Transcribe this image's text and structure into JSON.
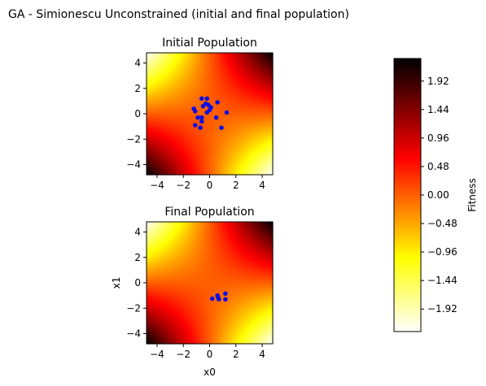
{
  "figure": {
    "title": "GA - Simionescu Unconstrained (initial and final population)"
  },
  "chart_data": [
    {
      "type": "scatter",
      "subtype": "contour-heatmap-with-scatter",
      "title": "Initial Population",
      "xlim": [
        -4.8,
        4.8
      ],
      "ylim": [
        -4.8,
        4.8
      ],
      "xticks": [
        -4,
        -2,
        0,
        2,
        4
      ],
      "yticks": [
        -4,
        -2,
        0,
        2,
        4
      ],
      "xlabel": "",
      "ylabel": "",
      "point_color": "#0f0fe0",
      "points": [
        [
          -0.6,
          1.2
        ],
        [
          -0.2,
          1.2
        ],
        [
          -0.3,
          0.8
        ],
        [
          -0.5,
          0.6
        ],
        [
          -0.1,
          0.7
        ],
        [
          0.1,
          0.5
        ],
        [
          0.0,
          0.3
        ],
        [
          -0.2,
          0.1
        ],
        [
          -1.2,
          0.4
        ],
        [
          -1.1,
          0.2
        ],
        [
          -0.9,
          -0.3
        ],
        [
          -0.6,
          -0.3
        ],
        [
          -0.6,
          -0.6
        ],
        [
          -1.1,
          -0.9
        ],
        [
          -0.7,
          -1.1
        ],
        [
          0.5,
          -0.3
        ],
        [
          1.3,
          0.1
        ],
        [
          0.9,
          -1.1
        ],
        [
          0.6,
          0.9
        ]
      ]
    },
    {
      "type": "scatter",
      "subtype": "contour-heatmap-with-scatter",
      "title": "Final Population",
      "xlim": [
        -4.8,
        4.8
      ],
      "ylim": [
        -4.8,
        4.8
      ],
      "xticks": [
        -4,
        -2,
        0,
        2,
        4
      ],
      "yticks": [
        -4,
        -2,
        0,
        2,
        4
      ],
      "xlabel": "x0",
      "ylabel": "x1",
      "point_color": "#0f0fe0",
      "points": [
        [
          0.2,
          -1.25
        ],
        [
          0.6,
          -1.0
        ],
        [
          0.7,
          -1.3
        ],
        [
          1.2,
          -0.85
        ],
        [
          1.2,
          -1.3
        ],
        [
          0.65,
          -1.15
        ]
      ]
    }
  ],
  "colorbar": {
    "label": "Fitness",
    "range": [
      -2.3,
      2.3
    ],
    "ticks": [
      "1.92",
      "1.44",
      "0.96",
      "0.48",
      "0.00",
      "−0.48",
      "−0.96",
      "−1.44",
      "−1.92"
    ],
    "tick_values": [
      1.92,
      1.44,
      0.96,
      0.48,
      0.0,
      -0.48,
      -0.96,
      -1.44,
      -1.92
    ],
    "colormap": "hot_r"
  }
}
